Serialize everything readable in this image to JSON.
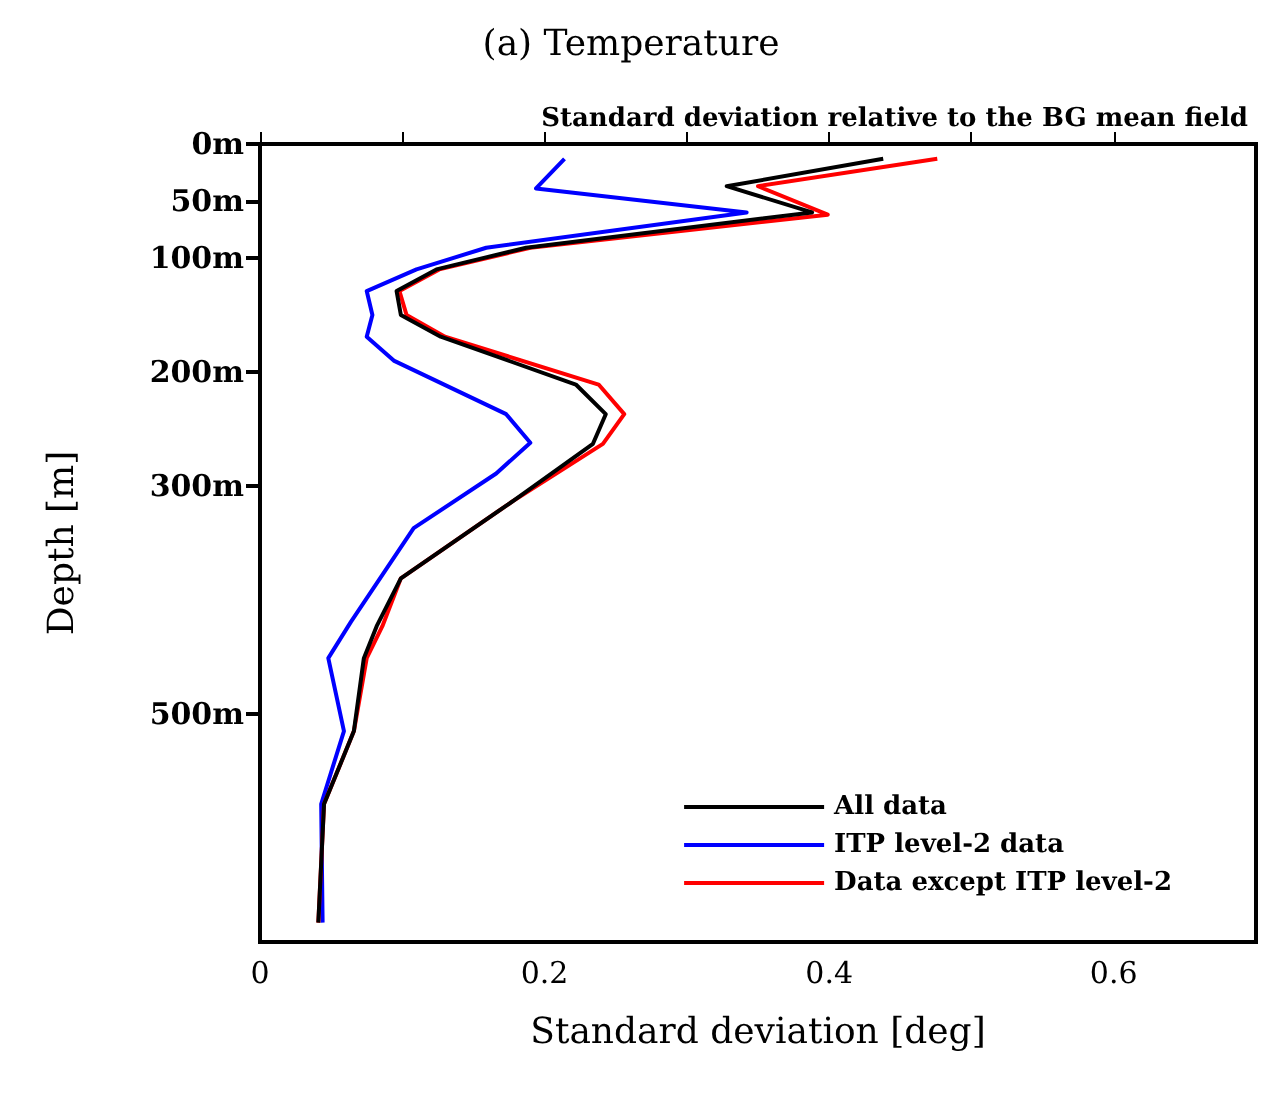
{
  "chart_data": {
    "type": "line",
    "title": "(a) Temperature",
    "subtitle": "Standard deviation relative to the BG mean field",
    "xlabel": "Standard deviation [deg]",
    "ylabel": "Depth [m]",
    "xlim": [
      0,
      0.7
    ],
    "xticks": [
      0,
      {
        "value": 0.1,
        "label": null
      },
      0.2,
      {
        "value": 0.3,
        "label": null
      },
      0.4,
      {
        "value": 0.5,
        "label": null
      },
      0.6
    ],
    "ylim": [
      700,
      0
    ],
    "yticks": [
      {
        "value": 0,
        "label": "0m"
      },
      {
        "value": 50,
        "label": "50m"
      },
      {
        "value": 100,
        "label": "100m"
      },
      {
        "value": 200,
        "label": "200m"
      },
      {
        "value": 300,
        "label": "300m"
      },
      {
        "value": 500,
        "label": "500m"
      }
    ],
    "grid": false,
    "legend": "bottom right",
    "marker": "none",
    "line_style": "solid",
    "series": [
      {
        "name": "All data",
        "color": "#000000",
        "x": [
          0.438,
          0.328,
          0.388,
          0.187,
          0.124,
          0.096,
          0.099,
          0.127,
          0.222,
          0.243,
          0.234,
          0.178,
          0.099,
          0.082,
          0.073,
          0.066,
          0.045,
          0.041
        ],
        "values": [
          13,
          37,
          60,
          91,
          110,
          129,
          150,
          169,
          211,
          237,
          263,
          313,
          381,
          423,
          451,
          515,
          579,
          683
        ]
      },
      {
        "name": "ITP level-2 data",
        "color": "#0000ff",
        "x": [
          0.214,
          0.194,
          0.342,
          0.159,
          0.11,
          0.075,
          0.079,
          0.075,
          0.094,
          0.173,
          0.19,
          0.166,
          0.108,
          0.064,
          0.048,
          0.059,
          0.043,
          0.044
        ],
        "values": [
          13,
          39,
          60,
          91,
          110,
          129,
          150,
          169,
          190,
          237,
          262,
          289,
          337,
          419,
          451,
          515,
          579,
          683
        ]
      },
      {
        "name": "Data except ITP level-2",
        "color": "#ff0000",
        "x": [
          0.476,
          0.35,
          0.399,
          0.19,
          0.126,
          0.098,
          0.103,
          0.13,
          0.238,
          0.256,
          0.241,
          0.178,
          0.099,
          0.086,
          0.075,
          0.066,
          0.045,
          0.041
        ],
        "values": [
          13,
          37,
          62,
          91,
          110,
          129,
          150,
          169,
          211,
          237,
          263,
          313,
          381,
          423,
          451,
          515,
          579,
          683
        ]
      }
    ]
  }
}
